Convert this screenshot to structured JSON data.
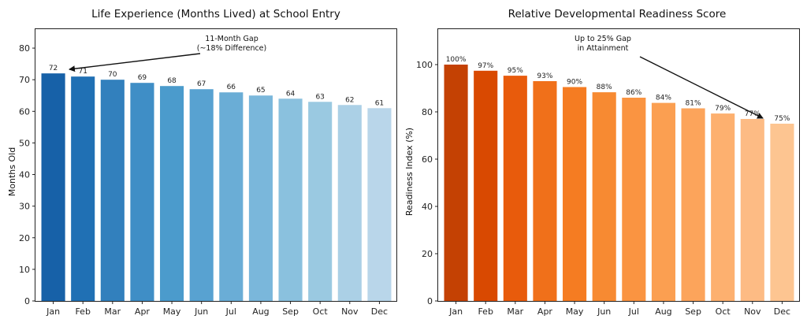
{
  "chart_data": [
    {
      "type": "bar",
      "title": "Life Experience (Months Lived) at School Entry",
      "xlabel": "",
      "ylabel": "Months Old",
      "categories": [
        "Jan",
        "Feb",
        "Mar",
        "Apr",
        "May",
        "Jun",
        "Jul",
        "Aug",
        "Sep",
        "Oct",
        "Nov",
        "Dec"
      ],
      "values": [
        72,
        71,
        70,
        69,
        68,
        67,
        66,
        65,
        64,
        63,
        62,
        61
      ],
      "data_labels": [
        "72",
        "71",
        "70",
        "69",
        "68",
        "67",
        "66",
        "65",
        "64",
        "63",
        "62",
        "61"
      ],
      "ylim": [
        0,
        86
      ],
      "yticks": [
        "0",
        "10",
        "20",
        "30",
        "40",
        "50",
        "60",
        "70",
        "80"
      ],
      "colormap": "blues",
      "colors": [
        "#1761a8",
        "#2070b4",
        "#3280bd",
        "#3f8ec6",
        "#4b9bcc",
        "#58a2d1",
        "#6aadd6",
        "#7ab7db",
        "#8ac1de",
        "#9ac9e1",
        "#abd0e6",
        "#b9d6ea"
      ],
      "grid": false,
      "annotation": {
        "line1": "11-Month Gap",
        "line2": "(~18% Difference)",
        "points_to": "Jan"
      }
    },
    {
      "type": "bar",
      "title": "Relative Developmental Readiness Score",
      "xlabel": "",
      "ylabel": "Readiness Index (%)",
      "categories": [
        "Jan",
        "Feb",
        "Mar",
        "Apr",
        "May",
        "Jun",
        "Jul",
        "Aug",
        "Sep",
        "Oct",
        "Nov",
        "Dec"
      ],
      "values": [
        100,
        97.4,
        95.3,
        93,
        90.5,
        88.3,
        86,
        83.8,
        81.5,
        79.3,
        77,
        75
      ],
      "data_labels": [
        "100%",
        "97%",
        "95%",
        "93%",
        "90%",
        "88%",
        "86%",
        "84%",
        "81%",
        "79%",
        "77%",
        "75%"
      ],
      "ylim": [
        0,
        115
      ],
      "yticks": [
        "0",
        "20",
        "40",
        "60",
        "80",
        "100"
      ],
      "colormap": "oranges",
      "colors": [
        "#c44103",
        "#d94901",
        "#e85b0c",
        "#f0701a",
        "#f57c22",
        "#f78a32",
        "#fa9441",
        "#fb9f51",
        "#fca45b",
        "#fdb06f",
        "#fdbb84",
        "#fdc591"
      ],
      "grid": false,
      "annotation": {
        "line1": "Up to 25% Gap",
        "line2": "in Attainment",
        "points_to": "Dec"
      }
    }
  ]
}
